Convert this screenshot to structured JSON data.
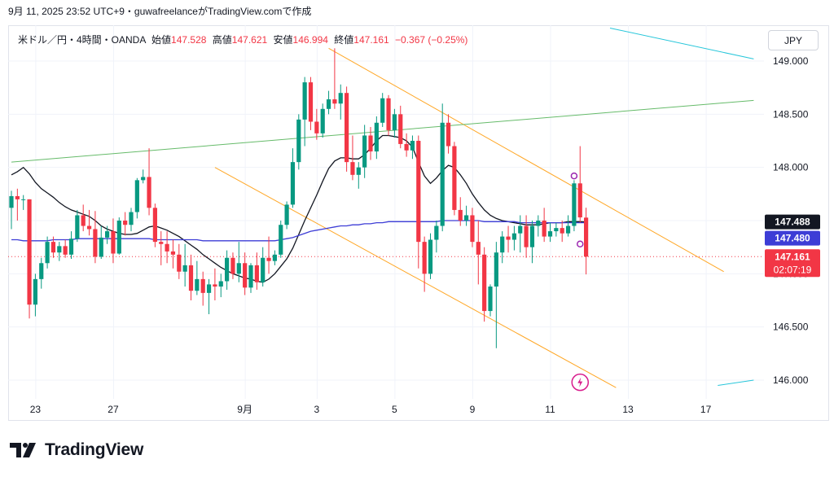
{
  "header": {
    "timestamp": "9月 11, 2025 23:52 UTC+9",
    "publisher_text": "guwafreelanceがTradingView.comで作成"
  },
  "legend": {
    "symbol": "米ドル／円・4時間・OANDA",
    "open_label": "始値",
    "open_value": "147.528",
    "high_label": "高値",
    "high_value": "147.621",
    "low_label": "安値",
    "low_value": "146.994",
    "close_label": "終値",
    "close_value": "147.161",
    "change": "−0.367 (−0.25%)"
  },
  "currency_button": "JPY",
  "brand": {
    "name": "TradingView",
    "logo_icon": "tradingview-logo-icon"
  },
  "colors": {
    "up": "#089981",
    "down": "#f23645",
    "ma_short": "#131722",
    "ma_long": "#3d3dd6",
    "channel": "#ffa726",
    "trendline": "#66bb6a",
    "cyan_line": "#26c6da"
  },
  "chart_data": {
    "type": "candlestick",
    "title": "米ドル／円・4時間・OANDA",
    "ylim": [
      145.9,
      149.15
    ],
    "y_ticks": [
      "149.000",
      "148.500",
      "148.000",
      "147.500",
      "147.000",
      "146.500",
      "146.000"
    ],
    "x_ticks": [
      "23",
      "27",
      "9月",
      "3",
      "5",
      "9",
      "11",
      "13",
      "17"
    ],
    "x_tick_bar_index": [
      4,
      17,
      39,
      51,
      64,
      77,
      90,
      103,
      116
    ],
    "price_labels": [
      {
        "name": "short-ma",
        "value": "147.488"
      },
      {
        "name": "long-ma",
        "value": "147.480"
      },
      {
        "name": "last",
        "value": "147.161",
        "countdown": "02:07:19"
      }
    ],
    "candles_ohlc": [
      [
        147.62,
        147.78,
        147.42,
        147.73
      ],
      [
        147.73,
        147.8,
        147.5,
        147.7
      ],
      [
        147.7,
        147.74,
        147.6,
        147.7
      ],
      [
        147.7,
        147.7,
        146.58,
        146.71
      ],
      [
        146.71,
        147.0,
        146.6,
        146.95
      ],
      [
        146.95,
        147.15,
        146.86,
        147.1
      ],
      [
        147.1,
        147.35,
        147.05,
        147.3
      ],
      [
        147.3,
        147.35,
        147.15,
        147.2
      ],
      [
        147.2,
        147.3,
        147.12,
        147.26
      ],
      [
        147.26,
        147.32,
        147.15,
        147.18
      ],
      [
        147.18,
        147.4,
        147.14,
        147.33
      ],
      [
        147.33,
        147.6,
        147.3,
        147.55
      ],
      [
        147.55,
        147.65,
        147.4,
        147.45
      ],
      [
        147.45,
        147.6,
        147.36,
        147.42
      ],
      [
        147.42,
        147.59,
        147.1,
        147.16
      ],
      [
        147.16,
        147.45,
        147.14,
        147.34
      ],
      [
        147.34,
        147.45,
        147.28,
        147.4
      ],
      [
        147.4,
        147.52,
        147.1,
        147.19
      ],
      [
        147.19,
        147.53,
        147.18,
        147.5
      ],
      [
        147.5,
        147.58,
        147.36,
        147.46
      ],
      [
        147.46,
        147.62,
        147.4,
        147.58
      ],
      [
        147.58,
        147.9,
        147.52,
        147.88
      ],
      [
        147.88,
        147.98,
        147.85,
        147.91
      ],
      [
        147.91,
        148.18,
        147.55,
        147.62
      ],
      [
        147.62,
        147.66,
        147.25,
        147.3
      ],
      [
        147.3,
        147.4,
        147.08,
        147.28
      ],
      [
        147.28,
        147.4,
        147.1,
        147.21
      ],
      [
        147.21,
        147.32,
        147.05,
        147.18
      ],
      [
        147.18,
        147.28,
        146.95,
        147.02
      ],
      [
        147.02,
        147.28,
        146.88,
        147.08
      ],
      [
        147.08,
        147.18,
        146.75,
        146.84
      ],
      [
        146.84,
        147.12,
        146.8,
        146.95
      ],
      [
        146.95,
        147.02,
        146.7,
        146.82
      ],
      [
        146.82,
        146.95,
        146.62,
        146.9
      ],
      [
        146.9,
        147.05,
        146.75,
        146.88
      ],
      [
        146.88,
        147.0,
        146.78,
        146.93
      ],
      [
        146.93,
        147.22,
        146.85,
        147.15
      ],
      [
        147.15,
        147.2,
        146.95,
        147.0
      ],
      [
        147.0,
        147.3,
        146.92,
        147.1
      ],
      [
        147.1,
        147.2,
        146.8,
        146.87
      ],
      [
        146.87,
        147.1,
        146.82,
        147.08
      ],
      [
        147.08,
        147.2,
        146.85,
        146.92
      ],
      [
        146.92,
        147.25,
        146.88,
        147.15
      ],
      [
        147.15,
        147.35,
        147.0,
        147.12
      ],
      [
        147.12,
        147.22,
        147.08,
        147.18
      ],
      [
        147.18,
        147.5,
        147.15,
        147.46
      ],
      [
        147.46,
        147.68,
        147.42,
        147.65
      ],
      [
        147.65,
        148.18,
        147.62,
        148.05
      ],
      [
        148.05,
        148.5,
        147.98,
        148.45
      ],
      [
        148.45,
        148.85,
        148.2,
        148.8
      ],
      [
        148.8,
        148.85,
        148.35,
        148.43
      ],
      [
        148.43,
        148.55,
        148.26,
        148.32
      ],
      [
        148.32,
        148.6,
        148.28,
        148.55
      ],
      [
        148.55,
        148.72,
        148.5,
        148.64
      ],
      [
        148.64,
        149.12,
        148.55,
        148.6
      ],
      [
        148.6,
        148.78,
        148.45,
        148.7
      ],
      [
        148.7,
        148.76,
        147.96,
        148.05
      ],
      [
        148.05,
        148.3,
        147.88,
        147.93
      ],
      [
        147.93,
        148.05,
        147.8,
        148.0
      ],
      [
        148.0,
        148.4,
        147.9,
        148.3
      ],
      [
        148.3,
        148.38,
        148.07,
        148.15
      ],
      [
        148.15,
        148.48,
        148.08,
        148.42
      ],
      [
        148.42,
        148.7,
        148.38,
        148.65
      ],
      [
        148.65,
        148.68,
        148.3,
        148.35
      ],
      [
        148.35,
        148.55,
        148.28,
        148.5
      ],
      [
        148.5,
        148.58,
        148.18,
        148.22
      ],
      [
        148.22,
        148.32,
        148.1,
        148.16
      ],
      [
        148.16,
        148.3,
        148.08,
        148.25
      ],
      [
        148.25,
        148.3,
        147.05,
        147.3
      ],
      [
        147.3,
        147.35,
        146.83,
        147.0
      ],
      [
        147.0,
        147.38,
        146.95,
        147.32
      ],
      [
        147.32,
        147.5,
        147.2,
        147.45
      ],
      [
        147.45,
        148.6,
        147.4,
        148.42
      ],
      [
        148.42,
        148.5,
        148.13,
        148.2
      ],
      [
        148.2,
        148.24,
        147.55,
        147.6
      ],
      [
        147.6,
        147.72,
        147.45,
        147.5
      ],
      [
        147.5,
        147.64,
        147.45,
        147.55
      ],
      [
        147.55,
        147.62,
        147.25,
        147.3
      ],
      [
        147.3,
        147.5,
        146.9,
        147.18
      ],
      [
        147.18,
        147.25,
        146.55,
        146.65
      ],
      [
        146.65,
        146.9,
        146.6,
        146.88
      ],
      [
        146.88,
        147.3,
        146.3,
        147.2
      ],
      [
        147.2,
        147.4,
        147.1,
        147.35
      ],
      [
        147.35,
        147.45,
        147.2,
        147.32
      ],
      [
        147.32,
        147.45,
        147.22,
        147.38
      ],
      [
        147.38,
        147.55,
        147.2,
        147.45
      ],
      [
        147.45,
        147.55,
        147.15,
        147.25
      ],
      [
        147.25,
        147.5,
        147.1,
        147.45
      ],
      [
        147.45,
        147.55,
        147.35,
        147.5
      ],
      [
        147.5,
        147.62,
        147.3,
        147.35
      ],
      [
        147.35,
        147.48,
        147.3,
        147.4
      ],
      [
        147.4,
        147.48,
        147.35,
        147.43
      ],
      [
        147.43,
        147.5,
        147.3,
        147.38
      ],
      [
        147.38,
        147.55,
        147.35,
        147.45
      ],
      [
        147.45,
        147.88,
        147.4,
        147.85
      ],
      [
        147.85,
        148.2,
        147.48,
        147.53
      ],
      [
        147.528,
        147.621,
        146.994,
        147.161
      ]
    ],
    "series": [
      {
        "name": "short-ma",
        "values": [
          147.93,
          147.96,
          148.0,
          147.94,
          147.86,
          147.8,
          147.76,
          147.72,
          147.67,
          147.63,
          147.6,
          147.58,
          147.56,
          147.54,
          147.5,
          147.45,
          147.42,
          147.4,
          147.38,
          147.37,
          147.37,
          147.38,
          147.41,
          147.44,
          147.45,
          147.43,
          147.41,
          147.38,
          147.35,
          147.31,
          147.27,
          147.23,
          147.18,
          147.14,
          147.1,
          147.06,
          147.03,
          147.0,
          146.98,
          146.96,
          146.95,
          146.93,
          146.92,
          146.95,
          147.0,
          147.07,
          147.14,
          147.24,
          147.37,
          147.5,
          147.62,
          147.74,
          147.87,
          147.99,
          148.06,
          148.09,
          148.09,
          148.08,
          148.08,
          148.12,
          148.18,
          148.25,
          148.3,
          148.3,
          148.29,
          148.28,
          148.25,
          148.19,
          148.05,
          147.92,
          147.85,
          147.9,
          147.97,
          148.02,
          148.0,
          147.93,
          147.85,
          147.75,
          147.67,
          147.6,
          147.55,
          147.52,
          147.5,
          147.49,
          147.48,
          147.47,
          147.46,
          147.46,
          147.46,
          147.47,
          147.48,
          147.48,
          147.48,
          147.49,
          147.49,
          147.49,
          147.488
        ]
      },
      {
        "name": "long-ma",
        "values": [
          147.32,
          147.32,
          147.31,
          147.31,
          147.31,
          147.31,
          147.31,
          147.32,
          147.32,
          147.32,
          147.32,
          147.33,
          147.33,
          147.33,
          147.33,
          147.33,
          147.33,
          147.33,
          147.33,
          147.33,
          147.33,
          147.33,
          147.33,
          147.33,
          147.32,
          147.32,
          147.32,
          147.32,
          147.32,
          147.32,
          147.32,
          147.32,
          147.31,
          147.31,
          147.31,
          147.31,
          147.31,
          147.31,
          147.31,
          147.31,
          147.31,
          147.31,
          147.31,
          147.31,
          147.31,
          147.32,
          147.33,
          147.34,
          147.36,
          147.38,
          147.4,
          147.41,
          147.42,
          147.43,
          147.44,
          147.45,
          147.45,
          147.46,
          147.46,
          147.47,
          147.47,
          147.48,
          147.48,
          147.49,
          147.49,
          147.49,
          147.49,
          147.49,
          147.49,
          147.49,
          147.49,
          147.49,
          147.5,
          147.5,
          147.5,
          147.5,
          147.5,
          147.5,
          147.5,
          147.49,
          147.49,
          147.49,
          147.49,
          147.49,
          147.49,
          147.48,
          147.48,
          147.48,
          147.48,
          147.48,
          147.48,
          147.48,
          147.48,
          147.48,
          147.48,
          147.48,
          147.48
        ]
      }
    ],
    "annotations": {
      "resistance_channel_upper": [
        [
          53,
          149.12
        ],
        [
          119,
          147.02
        ]
      ],
      "resistance_channel_lower": [
        [
          34,
          148.0
        ],
        [
          101,
          145.93
        ]
      ],
      "uptrend_line": [
        [
          0,
          148.05
        ],
        [
          124,
          148.63
        ]
      ],
      "cyan_line_top": [
        [
          100,
          149.31
        ],
        [
          124,
          149.02
        ]
      ],
      "cyan_line_bottom": [
        [
          118,
          145.95
        ],
        [
          124,
          146.0
        ]
      ]
    },
    "grid": true,
    "legend_position": "top-left"
  }
}
